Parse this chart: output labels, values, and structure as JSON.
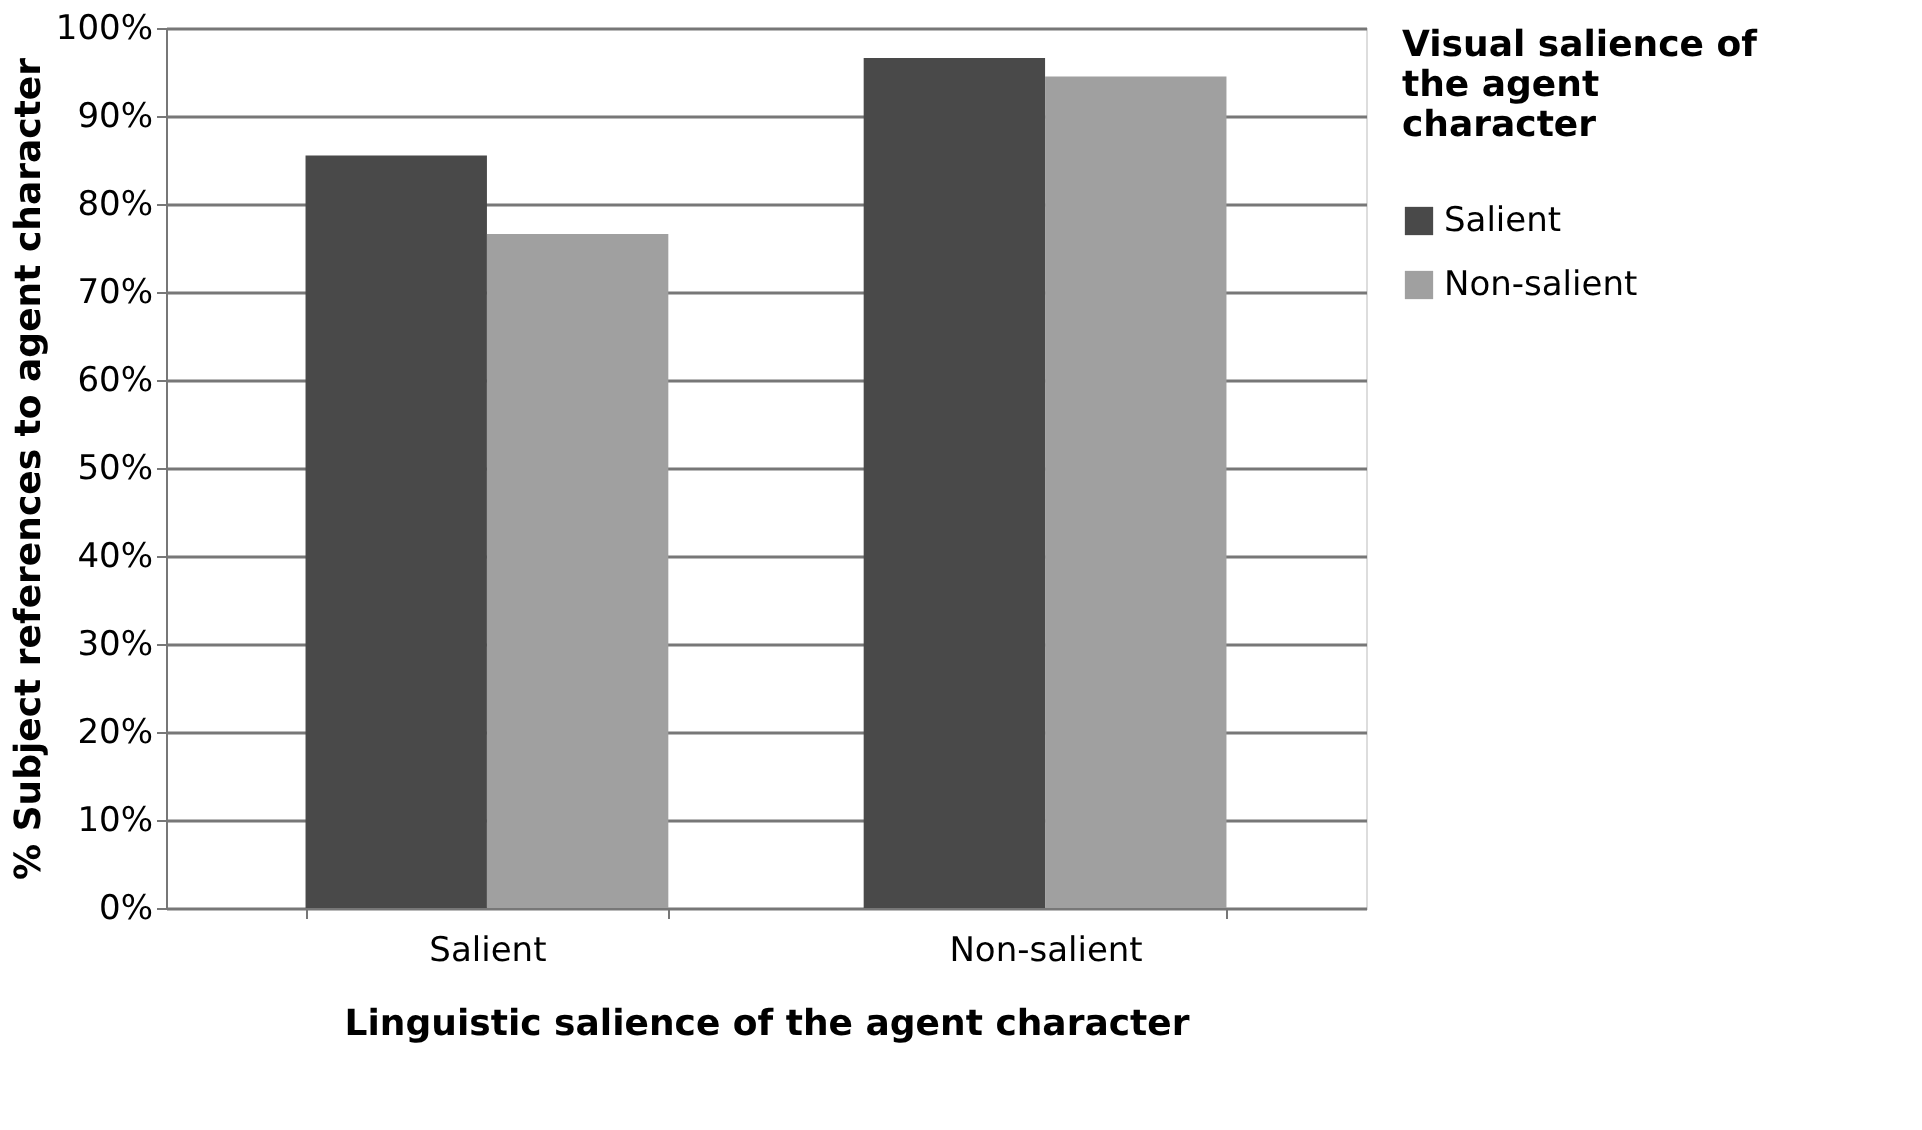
{
  "chart_data": {
    "type": "bar",
    "xlabel": "Linguistic salience of the agent character",
    "ylabel": "% Subject references to agent character",
    "legend_title": "Visual salience of the agent character",
    "categories": [
      "Salient",
      "Non-salient"
    ],
    "series": [
      {
        "name": "Salient",
        "color": "#494949",
        "values": [
          85.5,
          96.6
        ]
      },
      {
        "name": "Non-salient",
        "color": "#a0a0a0",
        "values": [
          76.6,
          94.5
        ]
      }
    ],
    "ylim": [
      0,
      100
    ],
    "yticks": [
      {
        "value": 0,
        "label": "0%"
      },
      {
        "value": 10,
        "label": "10%"
      },
      {
        "value": 20,
        "label": "20%"
      },
      {
        "value": 30,
        "label": "30%"
      },
      {
        "value": 40,
        "label": "40%"
      },
      {
        "value": 50,
        "label": "50%"
      },
      {
        "value": 60,
        "label": "60%"
      },
      {
        "value": 70,
        "label": "70%"
      },
      {
        "value": 80,
        "label": "80%"
      },
      {
        "value": 90,
        "label": "90%"
      },
      {
        "value": 100,
        "label": "100%"
      }
    ],
    "grid": "y",
    "legend": "right"
  }
}
